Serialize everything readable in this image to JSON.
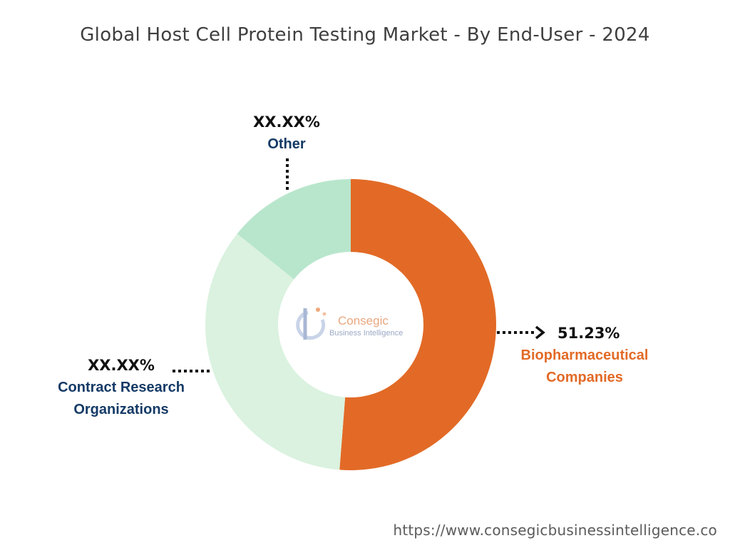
{
  "chart_data": {
    "type": "pie",
    "variant": "donut",
    "title": "Global Host Cell Protein Testing Market - By End-User - 2024",
    "start_angle_deg": 0,
    "direction": "clockwise",
    "slices": [
      {
        "label_lines": [
          "Biopharmaceutical",
          "Companies"
        ],
        "value": 51.23,
        "value_label": "51.23%",
        "color": "#e26a26",
        "label_color": "#e26a26"
      },
      {
        "label_lines": [
          "Contract Research",
          "Organizations"
        ],
        "value": 34.5,
        "value_label": "XX.XX%",
        "color": "#daf2df",
        "label_color": "#143a66"
      },
      {
        "label_lines": [
          "Other"
        ],
        "value": 14.27,
        "value_label": "XX.XX%",
        "color": "#b8e6cc",
        "label_color": "#143a66"
      }
    ]
  },
  "logo": {
    "name": "Consegic",
    "sub": "Business Intelligence"
  },
  "footer": {
    "url": "https://www.consegicbusinessintelligence.co"
  }
}
